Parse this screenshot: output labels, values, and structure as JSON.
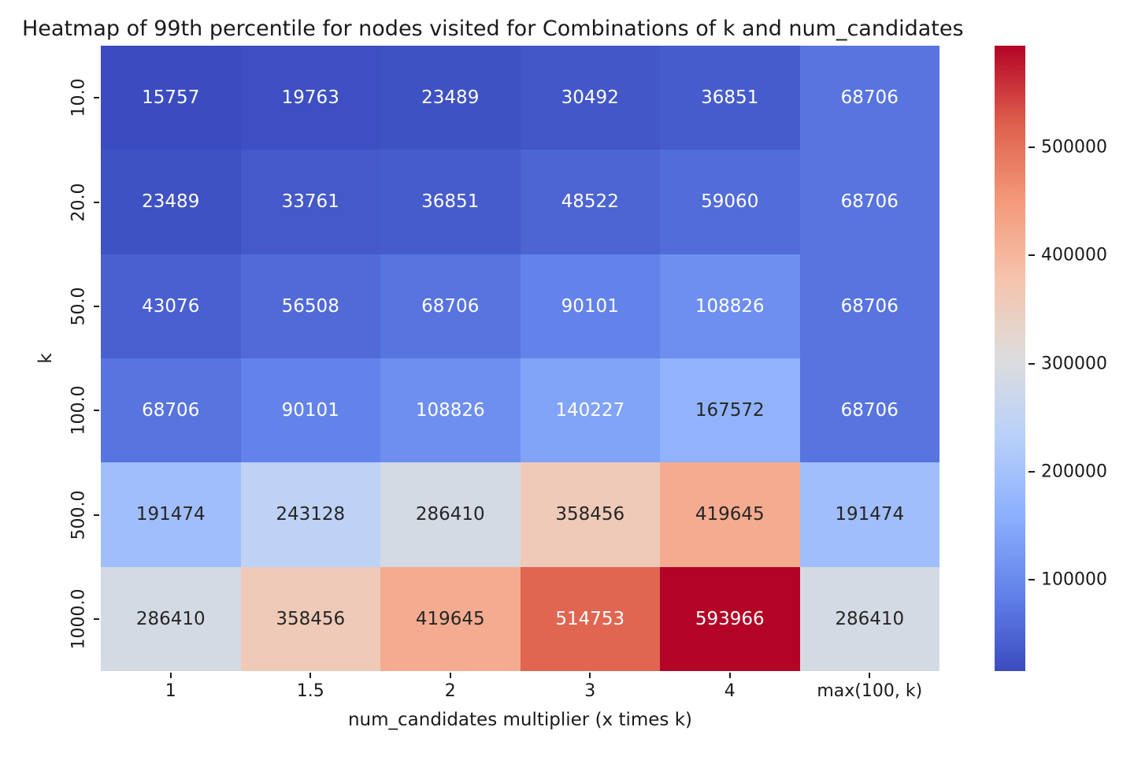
{
  "title": "Heatmap of 99th percentile for nodes visited for Combinations of k and num_candidates",
  "chart_data": {
    "type": "heatmap",
    "title": "Heatmap of 99th percentile for nodes visited for Combinations of k and num_candidates",
    "xlabel": "num_candidates multiplier (x times k)",
    "ylabel": "k",
    "x_categories": [
      "1",
      "1.5",
      "2",
      "3",
      "4",
      "max(100, k)"
    ],
    "y_categories": [
      "10.0",
      "20.0",
      "50.0",
      "100.0",
      "500.0",
      "1000.0"
    ],
    "values": [
      [
        15757,
        19763,
        23489,
        30492,
        36851,
        68706
      ],
      [
        23489,
        33761,
        36851,
        48522,
        59060,
        68706
      ],
      [
        43076,
        56508,
        68706,
        90101,
        108826,
        68706
      ],
      [
        68706,
        90101,
        108826,
        140227,
        167572,
        68706
      ],
      [
        191474,
        243128,
        286410,
        358456,
        419645,
        191474
      ],
      [
        286410,
        358456,
        419645,
        514753,
        593966,
        286410
      ]
    ],
    "vmin": 15757,
    "vmax": 593966,
    "colormap": {
      "name": "coolwarm",
      "stops": [
        "#3B4CC0",
        "#6282EA",
        "#8DB0FE",
        "#B8D0F9",
        "#DDDDDD",
        "#F5C4AD",
        "#F49A7B",
        "#DE604D",
        "#B40426"
      ]
    },
    "colorbar": {
      "position": "right",
      "tick_values": [
        100000,
        200000,
        300000,
        400000,
        500000
      ],
      "tick_labels": [
        "100000",
        "200000",
        "300000",
        "400000",
        "500000"
      ]
    },
    "grid": false,
    "legend_position": "none"
  },
  "colors": {
    "background": "#ffffff",
    "text": "#1a1a1a",
    "annot_light": "#ffffff",
    "annot_dark": "#262626",
    "tick_mark": "#1a1a1a",
    "min_color": "#3B4CC0",
    "mid_color": "#DDDDDD",
    "max_color": "#B40426"
  }
}
